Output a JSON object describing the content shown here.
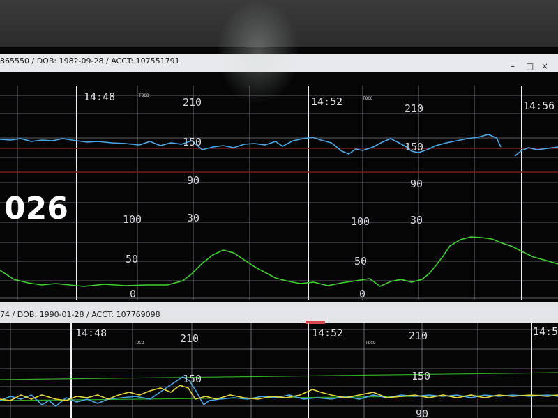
{
  "monitor": {
    "window_controls": [
      "–",
      "□",
      "×"
    ],
    "panel1": {
      "patient_line": "865550  / DOB: 1982-09-28  / ACCT: 107551791",
      "times": [
        "14:48",
        "14:52",
        "14:56"
      ],
      "fhr_labels": [
        "210",
        "150",
        "90",
        "30"
      ],
      "toco_labels": [
        "100",
        "50",
        "0"
      ],
      "toco_tag": "TOCO",
      "bed": "026"
    },
    "panel2": {
      "patient_line": "74  / DOB: 1990-01-28  / ACCT: 107769098",
      "times": [
        "14:48",
        "14:52",
        "14:5"
      ],
      "fhr_labels": [
        "210",
        "150",
        "90"
      ],
      "toco_tag": "TOCO"
    }
  },
  "colors": {
    "fhr_trace": "#4aa8e8",
    "toco_trace": "#3fd22e",
    "maternal_trace": "#e6d83a",
    "grid": "#c8c8d0",
    "alarm_line": "#8a1f1f"
  }
}
